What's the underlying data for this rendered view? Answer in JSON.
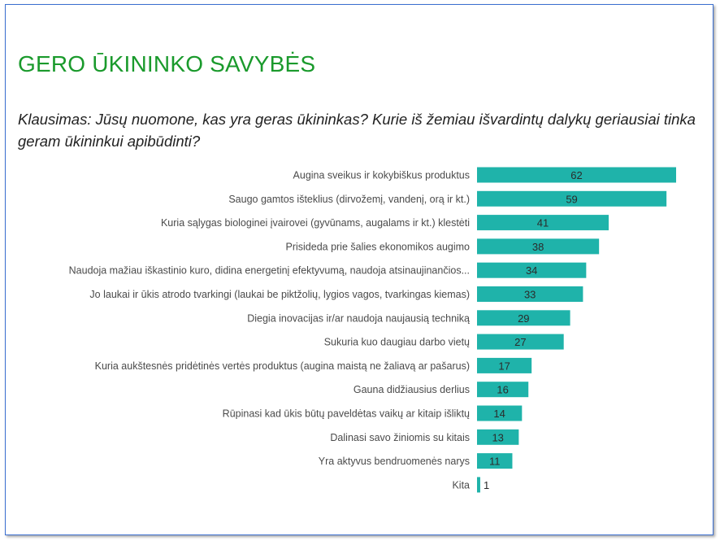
{
  "title": "GERO ŪKININKO SAVYBĖS",
  "question": "Klausimas: Jūsų nuomone, kas yra geras ūkininkas? Kurie iš žemiau išvardintų dalykų geriausiai tinka geram ūkininkui apibūdinti?",
  "colors": {
    "title": "#1a9a2c",
    "bar": "#1fb3aa",
    "frame": "#3b6fd0"
  },
  "chart_data": {
    "type": "bar",
    "orientation": "horizontal",
    "categories": [
      "Augina sveikus ir kokybiškus produktus",
      "Saugo gamtos išteklius (dirvožemį, vandenį, orą ir kt.)",
      "Kuria sąlygas biologinei įvairovei (gyvūnams, augalams ir kt.) klestėti",
      "Prisideda prie šalies ekonomikos augimo",
      "Naudoja mažiau iškastinio kuro, didina energetinį efektyvumą, naudoja atsinaujinančios...",
      "Jo laukai ir ūkis atrodo tvarkingi (laukai be piktžolių, lygios vagos, tvarkingas kiemas)",
      "Diegia inovacijas ir/ar naudoja naujausią techniką",
      "Sukuria kuo daugiau darbo vietų",
      "Kuria aukštesnės pridėtinės vertės produktus (augina maistą ne žaliavą ar pašarus)",
      "Gauna didžiausius derlius",
      "Rūpinasi kad ūkis būtų paveldėtas vaikų ar kitaip išliktų",
      "Dalinasi savo žiniomis su kitais",
      "Yra aktyvus bendruomenės narys",
      "Kita"
    ],
    "values": [
      62,
      59,
      41,
      38,
      34,
      33,
      29,
      27,
      17,
      16,
      14,
      13,
      11,
      1
    ],
    "xlim": [
      0,
      62
    ],
    "grid": false,
    "legend": "none"
  }
}
